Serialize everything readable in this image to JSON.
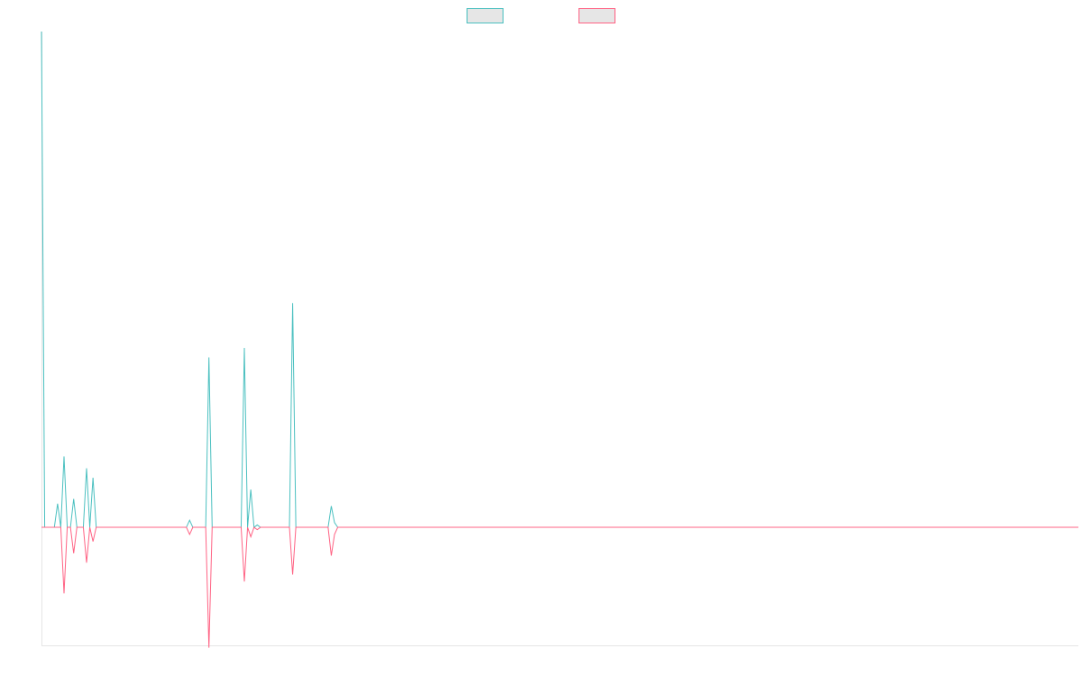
{
  "chart_data": {
    "type": "line",
    "title": "",
    "xlabel": "",
    "ylabel": "",
    "x_count": 323,
    "ylim": [
      -50,
      210
    ],
    "grid": false,
    "legend_position": "top-center",
    "series": [
      {
        "name": "",
        "color": "#4bc0c0",
        "legend_fill": "#e6e6e6",
        "points": [
          [
            0,
            210
          ],
          [
            1,
            0
          ],
          [
            2,
            0
          ],
          [
            3,
            0
          ],
          [
            4,
            0
          ],
          [
            5,
            10
          ],
          [
            6,
            0
          ],
          [
            7,
            30
          ],
          [
            8,
            0
          ],
          [
            9,
            0
          ],
          [
            10,
            12
          ],
          [
            11,
            0
          ],
          [
            12,
            0
          ],
          [
            13,
            0
          ],
          [
            14,
            25
          ],
          [
            15,
            0
          ],
          [
            16,
            21
          ],
          [
            17,
            0
          ],
          [
            45,
            0
          ],
          [
            46,
            3
          ],
          [
            47,
            0
          ],
          [
            50,
            0
          ],
          [
            51,
            0
          ],
          [
            52,
            72
          ],
          [
            53,
            0
          ],
          [
            62,
            0
          ],
          [
            63,
            76
          ],
          [
            64,
            0
          ],
          [
            65,
            16
          ],
          [
            66,
            0
          ],
          [
            67,
            1
          ],
          [
            68,
            0
          ],
          [
            77,
            0
          ],
          [
            78,
            95
          ],
          [
            79,
            0
          ],
          [
            88,
            0
          ],
          [
            89,
            0
          ],
          [
            90,
            9
          ],
          [
            91,
            2
          ],
          [
            92,
            0
          ],
          [
            322,
            0
          ]
        ]
      },
      {
        "name": "",
        "color": "#ff6384",
        "legend_fill": "#e6e6e6",
        "points": [
          [
            0,
            0
          ],
          [
            5,
            0
          ],
          [
            6,
            0
          ],
          [
            7,
            -28
          ],
          [
            8,
            0
          ],
          [
            9,
            0
          ],
          [
            10,
            -11
          ],
          [
            11,
            0
          ],
          [
            12,
            0
          ],
          [
            13,
            0
          ],
          [
            14,
            -15
          ],
          [
            15,
            0
          ],
          [
            16,
            -6
          ],
          [
            17,
            0
          ],
          [
            45,
            0
          ],
          [
            46,
            -3
          ],
          [
            47,
            0
          ],
          [
            50,
            0
          ],
          [
            51,
            0
          ],
          [
            52,
            -51
          ],
          [
            53,
            0
          ],
          [
            62,
            0
          ],
          [
            63,
            -23
          ],
          [
            64,
            0
          ],
          [
            65,
            -4
          ],
          [
            66,
            0
          ],
          [
            67,
            -1
          ],
          [
            68,
            0
          ],
          [
            77,
            0
          ],
          [
            78,
            -20
          ],
          [
            79,
            0
          ],
          [
            88,
            0
          ],
          [
            89,
            0
          ],
          [
            90,
            -12
          ],
          [
            91,
            -3
          ],
          [
            92,
            0
          ],
          [
            322,
            0
          ]
        ]
      }
    ]
  }
}
